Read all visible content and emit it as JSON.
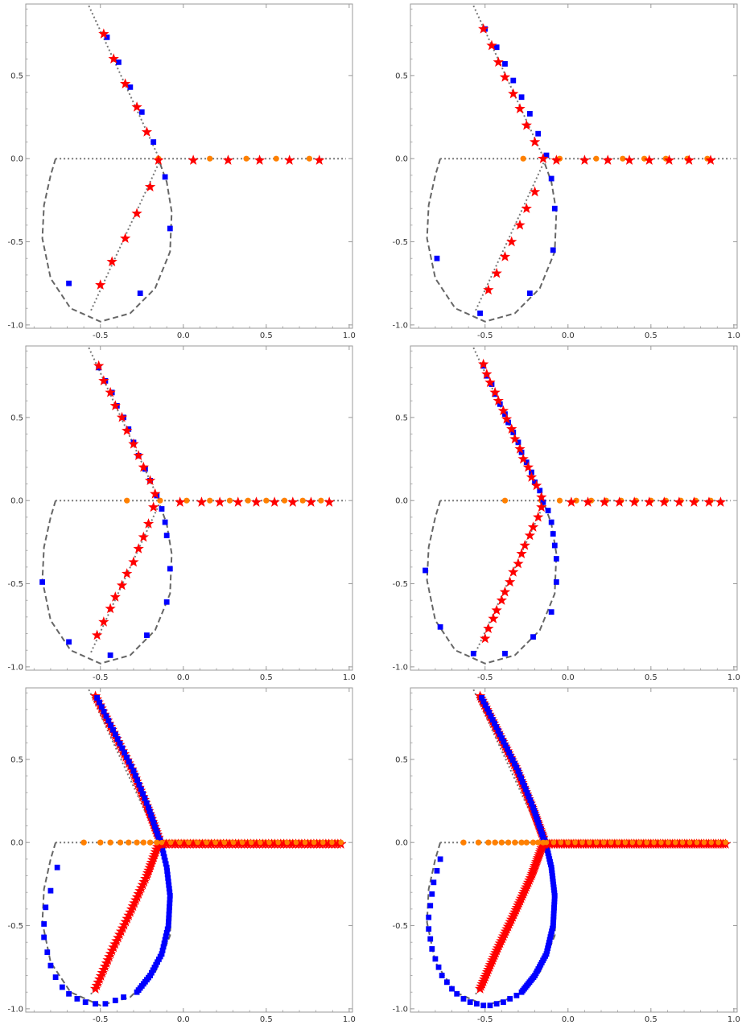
{
  "colors": {
    "background": "#ffffff",
    "frame": "#9a9a9a",
    "curve": "#666666",
    "dotted": "#777777",
    "square": "#0000ff",
    "star": "#ff0000",
    "circle": "#ff8000",
    "tick_text": "#333333"
  },
  "marker_icons": {
    "square": "square-marker-icon",
    "star": "star-marker-icon",
    "circle": "circle-marker-icon"
  },
  "chart_data": [
    {
      "type": "scatter",
      "panel": "top-left",
      "xlim": [
        -0.95,
        1.02
      ],
      "ylim": [
        -1.02,
        0.93
      ],
      "xticks": [
        -0.5,
        0.0,
        0.5,
        1.0
      ],
      "yticks": [
        -1.0,
        -0.5,
        0.0,
        0.5
      ],
      "xtick_labels": [
        "-0.5",
        "0.0",
        "0.5",
        "1.0"
      ],
      "ytick_labels": [
        "-1.0",
        "-0.5",
        "0.0",
        "0.5"
      ],
      "circle_points": [
        [
          -0.15,
          0.0
        ],
        [
          0.16,
          0.0
        ],
        [
          0.38,
          0.0
        ],
        [
          0.56,
          0.0
        ],
        [
          0.76,
          0.0
        ]
      ],
      "star_points": [
        [
          -0.48,
          0.75
        ],
        [
          -0.42,
          0.6
        ],
        [
          -0.35,
          0.45
        ],
        [
          -0.28,
          0.31
        ],
        [
          -0.22,
          0.16
        ],
        [
          -0.15,
          -0.01
        ],
        [
          -0.2,
          -0.17
        ],
        [
          -0.28,
          -0.33
        ],
        [
          -0.35,
          -0.48
        ],
        [
          -0.43,
          -0.62
        ],
        [
          -0.5,
          -0.76
        ],
        [
          0.06,
          -0.01
        ],
        [
          0.27,
          -0.01
        ],
        [
          0.46,
          -0.01
        ],
        [
          0.64,
          -0.01
        ],
        [
          0.82,
          -0.01
        ]
      ],
      "square_points": [
        [
          -0.46,
          0.73
        ],
        [
          -0.39,
          0.58
        ],
        [
          -0.32,
          0.43
        ],
        [
          -0.25,
          0.28
        ],
        [
          -0.18,
          0.1
        ],
        [
          -0.11,
          -0.11
        ],
        [
          -0.08,
          -0.42
        ],
        [
          -0.26,
          -0.81
        ],
        [
          -0.69,
          -0.75
        ]
      ]
    },
    {
      "type": "scatter",
      "panel": "top-right",
      "xlim": [
        -0.95,
        1.02
      ],
      "ylim": [
        -1.02,
        0.93
      ],
      "xticks": [
        -0.5,
        0.0,
        0.5,
        1.0
      ],
      "yticks": [
        -1.0,
        -0.5,
        0.0,
        0.5
      ],
      "xtick_labels": [
        "-0.5",
        "0.0",
        "0.5",
        "1.0"
      ],
      "ytick_labels": [
        "-1.0",
        "-0.5",
        "0.0",
        "0.5"
      ],
      "circle_points": [
        [
          -0.27,
          0.0
        ],
        [
          -0.05,
          0.0
        ],
        [
          0.17,
          0.0
        ],
        [
          0.33,
          0.0
        ],
        [
          0.46,
          0.0
        ],
        [
          0.59,
          0.0
        ],
        [
          0.72,
          0.0
        ],
        [
          0.84,
          0.0
        ]
      ],
      "star_points": [
        [
          -0.51,
          0.78
        ],
        [
          -0.46,
          0.68
        ],
        [
          -0.42,
          0.58
        ],
        [
          -0.38,
          0.49
        ],
        [
          -0.33,
          0.39
        ],
        [
          -0.29,
          0.3
        ],
        [
          -0.25,
          0.2
        ],
        [
          -0.2,
          0.1
        ],
        [
          -0.15,
          0.0
        ],
        [
          -0.2,
          -0.2
        ],
        [
          -0.25,
          -0.3
        ],
        [
          -0.29,
          -0.4
        ],
        [
          -0.34,
          -0.5
        ],
        [
          -0.38,
          -0.59
        ],
        [
          -0.43,
          -0.69
        ],
        [
          -0.48,
          -0.79
        ],
        [
          -0.07,
          -0.01
        ],
        [
          0.1,
          -0.01
        ],
        [
          0.24,
          -0.01
        ],
        [
          0.37,
          -0.01
        ],
        [
          0.49,
          -0.01
        ],
        [
          0.61,
          -0.01
        ],
        [
          0.73,
          -0.01
        ],
        [
          0.86,
          -0.01
        ]
      ],
      "square_points": [
        [
          -0.5,
          0.78
        ],
        [
          -0.43,
          0.67
        ],
        [
          -0.38,
          0.57
        ],
        [
          -0.33,
          0.47
        ],
        [
          -0.28,
          0.37
        ],
        [
          -0.23,
          0.27
        ],
        [
          -0.18,
          0.15
        ],
        [
          -0.13,
          0.02
        ],
        [
          -0.1,
          -0.12
        ],
        [
          -0.08,
          -0.3
        ],
        [
          -0.09,
          -0.55
        ],
        [
          -0.23,
          -0.81
        ],
        [
          -0.53,
          -0.93
        ],
        [
          -0.79,
          -0.6
        ]
      ]
    },
    {
      "type": "scatter",
      "panel": "middle-left",
      "xlim": [
        -0.95,
        1.02
      ],
      "ylim": [
        -1.02,
        0.93
      ],
      "xticks": [
        -0.5,
        0.0,
        0.5,
        1.0
      ],
      "yticks": [
        -1.0,
        -0.5,
        0.0,
        0.5
      ],
      "xtick_labels": [
        "-0.5",
        "0.0",
        "0.5",
        "1.0"
      ],
      "ytick_labels": [
        "-1.0",
        "-0.5",
        "0.0",
        "0.5"
      ],
      "circle_points": [
        [
          -0.34,
          0.0
        ],
        [
          -0.14,
          0.0
        ],
        [
          0.02,
          0.0
        ],
        [
          0.16,
          0.0
        ],
        [
          0.28,
          0.0
        ],
        [
          0.39,
          0.0
        ],
        [
          0.5,
          0.0
        ],
        [
          0.61,
          0.0
        ],
        [
          0.72,
          0.0
        ],
        [
          0.83,
          0.0
        ]
      ],
      "star_points": [
        [
          -0.51,
          0.81
        ],
        [
          -0.48,
          0.72
        ],
        [
          -0.44,
          0.65
        ],
        [
          -0.41,
          0.57
        ],
        [
          -0.37,
          0.5
        ],
        [
          -0.34,
          0.42
        ],
        [
          -0.3,
          0.34
        ],
        [
          -0.27,
          0.27
        ],
        [
          -0.24,
          0.2
        ],
        [
          -0.2,
          0.12
        ],
        [
          -0.17,
          0.04
        ],
        [
          -0.18,
          -0.04
        ],
        [
          -0.21,
          -0.14
        ],
        [
          -0.24,
          -0.22
        ],
        [
          -0.27,
          -0.29
        ],
        [
          -0.3,
          -0.37
        ],
        [
          -0.34,
          -0.44
        ],
        [
          -0.37,
          -0.51
        ],
        [
          -0.41,
          -0.58
        ],
        [
          -0.44,
          -0.65
        ],
        [
          -0.48,
          -0.73
        ],
        [
          -0.52,
          -0.81
        ],
        [
          -0.02,
          -0.01
        ],
        [
          0.11,
          -0.01
        ],
        [
          0.22,
          -0.01
        ],
        [
          0.33,
          -0.01
        ],
        [
          0.44,
          -0.01
        ],
        [
          0.55,
          -0.01
        ],
        [
          0.66,
          -0.01
        ],
        [
          0.77,
          -0.01
        ],
        [
          0.88,
          -0.01
        ]
      ],
      "square_points": [
        [
          -0.51,
          0.8
        ],
        [
          -0.47,
          0.72
        ],
        [
          -0.43,
          0.65
        ],
        [
          -0.4,
          0.57
        ],
        [
          -0.36,
          0.5
        ],
        [
          -0.33,
          0.43
        ],
        [
          -0.3,
          0.35
        ],
        [
          -0.27,
          0.27
        ],
        [
          -0.23,
          0.19
        ],
        [
          -0.2,
          0.12
        ],
        [
          -0.16,
          0.03
        ],
        [
          -0.13,
          -0.05
        ],
        [
          -0.11,
          -0.13
        ],
        [
          -0.1,
          -0.21
        ],
        [
          -0.08,
          -0.41
        ],
        [
          -0.1,
          -0.61
        ],
        [
          -0.22,
          -0.81
        ],
        [
          -0.44,
          -0.93
        ],
        [
          -0.69,
          -0.85
        ],
        [
          -0.85,
          -0.49
        ]
      ]
    },
    {
      "type": "scatter",
      "panel": "middle-right",
      "xlim": [
        -0.95,
        1.02
      ],
      "ylim": [
        -1.02,
        0.93
      ],
      "xticks": [
        -0.5,
        0.0,
        0.5,
        1.0
      ],
      "yticks": [
        -1.0,
        -0.5,
        0.0,
        0.5
      ],
      "xtick_labels": [
        "-0.5",
        "0.0",
        "0.5",
        "1.0"
      ],
      "ytick_labels": [
        "-1.0",
        "-0.5",
        "0.0",
        "0.5"
      ],
      "circle_points": [
        [
          -0.38,
          0.0
        ],
        [
          -0.16,
          0.0
        ],
        [
          -0.05,
          0.0
        ],
        [
          0.05,
          0.0
        ],
        [
          0.14,
          0.0
        ],
        [
          0.23,
          0.0
        ],
        [
          0.32,
          0.0
        ],
        [
          0.41,
          0.0
        ],
        [
          0.5,
          0.0
        ],
        [
          0.59,
          0.0
        ],
        [
          0.68,
          0.0
        ],
        [
          0.77,
          0.0
        ],
        [
          0.86,
          0.0
        ]
      ],
      "star_points": [
        [
          -0.51,
          0.82
        ],
        [
          -0.49,
          0.76
        ],
        [
          -0.47,
          0.71
        ],
        [
          -0.44,
          0.65
        ],
        [
          -0.42,
          0.6
        ],
        [
          -0.39,
          0.54
        ],
        [
          -0.37,
          0.49
        ],
        [
          -0.34,
          0.43
        ],
        [
          -0.32,
          0.37
        ],
        [
          -0.29,
          0.31
        ],
        [
          -0.27,
          0.25
        ],
        [
          -0.24,
          0.2
        ],
        [
          -0.22,
          0.14
        ],
        [
          -0.19,
          0.09
        ],
        [
          -0.16,
          0.02
        ],
        [
          -0.16,
          -0.04
        ],
        [
          -0.18,
          -0.1
        ],
        [
          -0.21,
          -0.16
        ],
        [
          -0.23,
          -0.21
        ],
        [
          -0.26,
          -0.27
        ],
        [
          -0.28,
          -0.32
        ],
        [
          -0.3,
          -0.38
        ],
        [
          -0.33,
          -0.43
        ],
        [
          -0.35,
          -0.49
        ],
        [
          -0.38,
          -0.55
        ],
        [
          -0.4,
          -0.6
        ],
        [
          -0.43,
          -0.66
        ],
        [
          -0.45,
          -0.71
        ],
        [
          -0.48,
          -0.77
        ],
        [
          -0.5,
          -0.83
        ],
        [
          0.02,
          -0.01
        ],
        [
          0.12,
          -0.01
        ],
        [
          0.22,
          -0.01
        ],
        [
          0.31,
          -0.01
        ],
        [
          0.4,
          -0.01
        ],
        [
          0.49,
          -0.01
        ],
        [
          0.58,
          -0.01
        ],
        [
          0.67,
          -0.01
        ],
        [
          0.76,
          -0.01
        ],
        [
          0.85,
          -0.01
        ],
        [
          0.92,
          -0.01
        ]
      ],
      "square_points": [
        [
          -0.51,
          0.81
        ],
        [
          -0.49,
          0.75
        ],
        [
          -0.46,
          0.7
        ],
        [
          -0.44,
          0.64
        ],
        [
          -0.41,
          0.58
        ],
        [
          -0.38,
          0.52
        ],
        [
          -0.36,
          0.47
        ],
        [
          -0.33,
          0.41
        ],
        [
          -0.3,
          0.35
        ],
        [
          -0.28,
          0.29
        ],
        [
          -0.25,
          0.23
        ],
        [
          -0.22,
          0.17
        ],
        [
          -0.2,
          0.11
        ],
        [
          -0.17,
          0.06
        ],
        [
          -0.15,
          -0.01
        ],
        [
          -0.12,
          -0.06
        ],
        [
          -0.1,
          -0.13
        ],
        [
          -0.09,
          -0.2
        ],
        [
          -0.08,
          -0.27
        ],
        [
          -0.07,
          -0.35
        ],
        [
          -0.07,
          -0.49
        ],
        [
          -0.1,
          -0.67
        ],
        [
          -0.21,
          -0.82
        ],
        [
          -0.38,
          -0.92
        ],
        [
          -0.57,
          -0.92
        ],
        [
          -0.77,
          -0.76
        ],
        [
          -0.86,
          -0.42
        ]
      ]
    },
    {
      "type": "scatter",
      "panel": "bottom-left",
      "xlim": [
        -0.95,
        1.02
      ],
      "ylim": [
        -1.02,
        0.93
      ],
      "xticks": [
        -0.5,
        0.0,
        0.5,
        1.0
      ],
      "yticks": [
        -1.0,
        -0.5,
        0.0,
        0.5
      ],
      "xtick_labels": [
        "-0.5",
        "0.0",
        "0.5",
        "1.0"
      ],
      "ytick_labels": [
        "-1.0",
        "-0.5",
        "0.0",
        "0.5"
      ],
      "circle_points": [
        [
          -0.6,
          0.0
        ],
        [
          -0.5,
          0.0
        ],
        [
          -0.44,
          0.0
        ],
        [
          -0.38,
          0.0
        ],
        [
          -0.33,
          0.0
        ],
        [
          -0.28,
          0.0
        ],
        [
          -0.24,
          0.0
        ],
        [
          -0.2,
          0.0
        ],
        [
          -0.16,
          0.0
        ]
      ],
      "square_points": [
        [
          -0.76,
          -0.15
        ],
        [
          -0.8,
          -0.29
        ],
        [
          -0.83,
          -0.39
        ],
        [
          -0.84,
          -0.49
        ],
        [
          -0.84,
          -0.57
        ],
        [
          -0.82,
          -0.66
        ],
        [
          -0.8,
          -0.74
        ],
        [
          -0.77,
          -0.81
        ],
        [
          -0.73,
          -0.87
        ],
        [
          -0.69,
          -0.91
        ],
        [
          -0.64,
          -0.94
        ],
        [
          -0.59,
          -0.96
        ],
        [
          -0.53,
          -0.97
        ],
        [
          -0.47,
          -0.97
        ],
        [
          -0.41,
          -0.95
        ],
        [
          -0.36,
          -0.93
        ]
      ]
    },
    {
      "type": "scatter",
      "panel": "bottom-right",
      "xlim": [
        -0.95,
        1.02
      ],
      "ylim": [
        -1.02,
        0.93
      ],
      "xticks": [
        -0.5,
        0.0,
        0.5,
        1.0
      ],
      "yticks": [
        -1.0,
        -0.5,
        0.0,
        0.5
      ],
      "xtick_labels": [
        "-0.5",
        "0.0",
        "0.5",
        "1.0"
      ],
      "ytick_labels": [
        "-1.0",
        "-0.5",
        "0.0",
        "0.5"
      ],
      "circle_points": [
        [
          -0.63,
          0.0
        ],
        [
          -0.54,
          0.0
        ],
        [
          -0.48,
          0.0
        ],
        [
          -0.44,
          0.0
        ],
        [
          -0.4,
          0.0
        ],
        [
          -0.36,
          0.0
        ],
        [
          -0.32,
          0.0
        ],
        [
          -0.28,
          0.0
        ],
        [
          -0.25,
          0.0
        ],
        [
          -0.21,
          0.0
        ],
        [
          -0.18,
          0.0
        ],
        [
          -0.15,
          0.0
        ]
      ],
      "square_points": [
        [
          -0.77,
          -0.1
        ],
        [
          -0.79,
          -0.17
        ],
        [
          -0.81,
          -0.24
        ],
        [
          -0.82,
          -0.31
        ],
        [
          -0.83,
          -0.38
        ],
        [
          -0.84,
          -0.45
        ],
        [
          -0.84,
          -0.52
        ],
        [
          -0.83,
          -0.58
        ],
        [
          -0.82,
          -0.64
        ],
        [
          -0.8,
          -0.7
        ],
        [
          -0.78,
          -0.75
        ],
        [
          -0.76,
          -0.8
        ],
        [
          -0.73,
          -0.84
        ],
        [
          -0.7,
          -0.88
        ],
        [
          -0.67,
          -0.91
        ],
        [
          -0.63,
          -0.94
        ],
        [
          -0.59,
          -0.96
        ],
        [
          -0.55,
          -0.97
        ],
        [
          -0.51,
          -0.98
        ],
        [
          -0.47,
          -0.98
        ],
        [
          -0.43,
          -0.97
        ],
        [
          -0.39,
          -0.96
        ],
        [
          -0.35,
          -0.94
        ],
        [
          -0.31,
          -0.92
        ]
      ]
    }
  ]
}
